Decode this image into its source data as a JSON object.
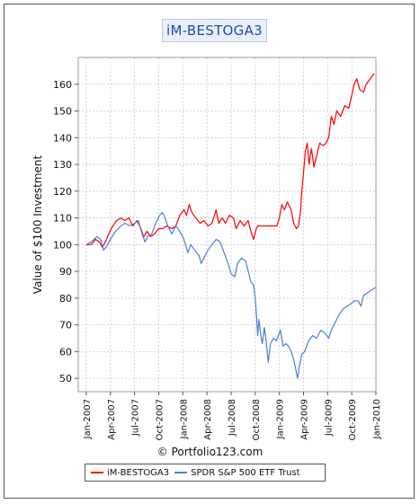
{
  "chart_data": {
    "type": "line",
    "title": "iM-BESTOGA3",
    "ylabel": "Value of $100 Investment",
    "xlabel": "",
    "ylim": [
      45,
      170
    ],
    "yticks": [
      50,
      60,
      70,
      80,
      90,
      100,
      110,
      120,
      130,
      140,
      150,
      160
    ],
    "xticks": [
      "Jan-2007",
      "Apr-2007",
      "Jul-2007",
      "Oct-2007",
      "Jan-2008",
      "Apr-2008",
      "Jul-2008",
      "Oct-2008",
      "Jan-2009",
      "Apr-2009",
      "Jul-2009",
      "Oct-2009",
      "Jan-2010"
    ],
    "x_range": [
      "Dec-2006",
      "Jan-2010"
    ],
    "grid": true,
    "legend_position": "bottom",
    "credit": "© Portfolio123.com",
    "series": [
      {
        "name": "iM-BESTOGA3",
        "color": "#ff0000",
        "points": [
          [
            "2007-01-01",
            100
          ],
          [
            "2007-01-20",
            100
          ],
          [
            "2007-02-05",
            102
          ],
          [
            "2007-02-20",
            101
          ],
          [
            "2007-03-01",
            99
          ],
          [
            "2007-03-12",
            101
          ],
          [
            "2007-03-25",
            104
          ],
          [
            "2007-04-10",
            107
          ],
          [
            "2007-04-25",
            109
          ],
          [
            "2007-05-10",
            110
          ],
          [
            "2007-05-25",
            109
          ],
          [
            "2007-06-10",
            110
          ],
          [
            "2007-06-25",
            107
          ],
          [
            "2007-07-10",
            109
          ],
          [
            "2007-07-25",
            106
          ],
          [
            "2007-08-05",
            103
          ],
          [
            "2007-08-18",
            105
          ],
          [
            "2007-09-01",
            103
          ],
          [
            "2007-09-15",
            104
          ],
          [
            "2007-10-01",
            106
          ],
          [
            "2007-10-15",
            106
          ],
          [
            "2007-11-01",
            107
          ],
          [
            "2007-11-20",
            106
          ],
          [
            "2007-12-05",
            107
          ],
          [
            "2007-12-20",
            111
          ],
          [
            "2008-01-05",
            113
          ],
          [
            "2008-01-15",
            111
          ],
          [
            "2008-01-25",
            115
          ],
          [
            "2008-02-05",
            112
          ],
          [
            "2008-02-20",
            110
          ],
          [
            "2008-03-05",
            108
          ],
          [
            "2008-03-20",
            109
          ],
          [
            "2008-04-05",
            107
          ],
          [
            "2008-04-20",
            108
          ],
          [
            "2008-05-05",
            113
          ],
          [
            "2008-05-15",
            108
          ],
          [
            "2008-05-28",
            110
          ],
          [
            "2008-06-10",
            108
          ],
          [
            "2008-06-25",
            111
          ],
          [
            "2008-07-10",
            110
          ],
          [
            "2008-07-20",
            106
          ],
          [
            "2008-08-05",
            109
          ],
          [
            "2008-08-20",
            107
          ],
          [
            "2008-09-05",
            109
          ],
          [
            "2008-09-15",
            105
          ],
          [
            "2008-09-25",
            102
          ],
          [
            "2008-10-05",
            106
          ],
          [
            "2008-10-10",
            107
          ],
          [
            "2008-10-15",
            107
          ],
          [
            "2008-11-15",
            107
          ],
          [
            "2008-12-10",
            107
          ],
          [
            "2008-12-22",
            107
          ],
          [
            "2009-01-01",
            110
          ],
          [
            "2009-01-10",
            115
          ],
          [
            "2009-01-20",
            113
          ],
          [
            "2009-02-01",
            116
          ],
          [
            "2009-02-15",
            113
          ],
          [
            "2009-02-25",
            108
          ],
          [
            "2009-03-05",
            106
          ],
          [
            "2009-03-12",
            107
          ],
          [
            "2009-03-20",
            112
          ],
          [
            "2009-03-25",
            120
          ],
          [
            "2009-04-01",
            127
          ],
          [
            "2009-04-08",
            135
          ],
          [
            "2009-04-15",
            138
          ],
          [
            "2009-04-22",
            130
          ],
          [
            "2009-05-01",
            136
          ],
          [
            "2009-05-10",
            129
          ],
          [
            "2009-05-20",
            133
          ],
          [
            "2009-06-01",
            138
          ],
          [
            "2009-06-15",
            137
          ],
          [
            "2009-06-25",
            138
          ],
          [
            "2009-07-05",
            140
          ],
          [
            "2009-07-15",
            148
          ],
          [
            "2009-07-25",
            145
          ],
          [
            "2009-08-05",
            150
          ],
          [
            "2009-08-20",
            148
          ],
          [
            "2009-09-05",
            152
          ],
          [
            "2009-09-20",
            151
          ],
          [
            "2009-10-01",
            156
          ],
          [
            "2009-10-10",
            160
          ],
          [
            "2009-10-20",
            162
          ],
          [
            "2009-11-01",
            158
          ],
          [
            "2009-11-15",
            157
          ],
          [
            "2009-11-25",
            160
          ],
          [
            "2009-12-10",
            162
          ],
          [
            "2009-12-25",
            164
          ]
        ]
      },
      {
        "name": "SPDR S&P 500 ETF Trust",
        "color": "#4a7fd4",
        "points": [
          [
            "2007-01-01",
            100
          ],
          [
            "2007-01-20",
            101
          ],
          [
            "2007-02-10",
            103
          ],
          [
            "2007-02-25",
            102
          ],
          [
            "2007-03-05",
            98
          ],
          [
            "2007-03-15",
            99
          ],
          [
            "2007-04-01",
            102
          ],
          [
            "2007-04-20",
            105
          ],
          [
            "2007-05-10",
            107
          ],
          [
            "2007-05-25",
            108
          ],
          [
            "2007-06-15",
            107
          ],
          [
            "2007-07-01",
            108
          ],
          [
            "2007-07-15",
            109
          ],
          [
            "2007-07-30",
            104
          ],
          [
            "2007-08-10",
            101
          ],
          [
            "2007-08-20",
            103
          ],
          [
            "2007-09-05",
            104
          ],
          [
            "2007-09-20",
            108
          ],
          [
            "2007-10-05",
            111
          ],
          [
            "2007-10-15",
            112
          ],
          [
            "2007-10-25",
            110
          ],
          [
            "2007-11-05",
            107
          ],
          [
            "2007-11-20",
            104
          ],
          [
            "2007-12-05",
            107
          ],
          [
            "2007-12-20",
            105
          ],
          [
            "2008-01-05",
            102
          ],
          [
            "2008-01-20",
            97
          ],
          [
            "2008-02-01",
            100
          ],
          [
            "2008-02-15",
            98
          ],
          [
            "2008-03-01",
            96
          ],
          [
            "2008-03-10",
            93
          ],
          [
            "2008-03-20",
            95
          ],
          [
            "2008-04-05",
            98
          ],
          [
            "2008-04-20",
            100
          ],
          [
            "2008-05-05",
            102
          ],
          [
            "2008-05-20",
            101
          ],
          [
            "2008-06-05",
            97
          ],
          [
            "2008-06-20",
            93
          ],
          [
            "2008-07-01",
            89
          ],
          [
            "2008-07-15",
            88
          ],
          [
            "2008-07-25",
            93
          ],
          [
            "2008-08-10",
            95
          ],
          [
            "2008-08-25",
            94
          ],
          [
            "2008-09-05",
            90
          ],
          [
            "2008-09-15",
            86
          ],
          [
            "2008-09-25",
            85
          ],
          [
            "2008-10-01",
            80
          ],
          [
            "2008-10-06",
            73
          ],
          [
            "2008-10-10",
            66
          ],
          [
            "2008-10-15",
            72
          ],
          [
            "2008-10-22",
            66
          ],
          [
            "2008-10-28",
            63
          ],
          [
            "2008-11-05",
            69
          ],
          [
            "2008-11-12",
            64
          ],
          [
            "2008-11-20",
            56
          ],
          [
            "2008-11-28",
            63
          ],
          [
            "2008-12-10",
            65
          ],
          [
            "2008-12-20",
            64
          ],
          [
            "2009-01-05",
            68
          ],
          [
            "2009-01-15",
            62
          ],
          [
            "2009-01-25",
            63
          ],
          [
            "2009-02-05",
            62
          ],
          [
            "2009-02-15",
            60
          ],
          [
            "2009-02-25",
            57
          ],
          [
            "2009-03-05",
            52
          ],
          [
            "2009-03-09",
            50
          ],
          [
            "2009-03-15",
            54
          ],
          [
            "2009-03-25",
            59
          ],
          [
            "2009-04-05",
            60
          ],
          [
            "2009-04-20",
            64
          ],
          [
            "2009-05-05",
            66
          ],
          [
            "2009-05-20",
            65
          ],
          [
            "2009-06-05",
            68
          ],
          [
            "2009-06-20",
            67
          ],
          [
            "2009-07-05",
            65
          ],
          [
            "2009-07-15",
            68
          ],
          [
            "2009-07-30",
            71
          ],
          [
            "2009-08-15",
            74
          ],
          [
            "2009-08-30",
            76
          ],
          [
            "2009-09-15",
            77
          ],
          [
            "2009-09-30",
            78
          ],
          [
            "2009-10-10",
            79
          ],
          [
            "2009-10-25",
            79
          ],
          [
            "2009-11-05",
            77
          ],
          [
            "2009-11-15",
            81
          ],
          [
            "2009-11-30",
            82
          ],
          [
            "2009-12-15",
            83
          ],
          [
            "2009-12-30",
            84
          ]
        ]
      }
    ]
  }
}
